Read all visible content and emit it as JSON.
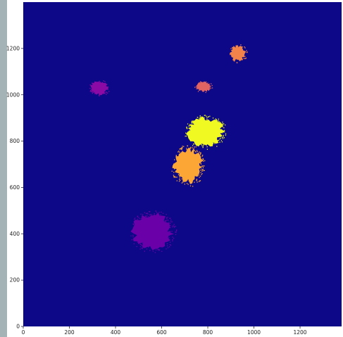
{
  "chart_data": {
    "type": "heatmap",
    "title": "",
    "xlabel": "",
    "ylabel": "",
    "xlim": [
      0,
      1380
    ],
    "ylim": [
      0,
      1400
    ],
    "x_ticks": [
      0,
      200,
      400,
      600,
      800,
      1000,
      1200
    ],
    "y_ticks": [
      0,
      200,
      400,
      600,
      800,
      1000,
      1200
    ],
    "x_tick_labels": [
      "0",
      "200",
      "400",
      "600",
      "800",
      "1000",
      "1200"
    ],
    "y_tick_labels": [
      "0",
      "200",
      "400",
      "600",
      "800",
      "1000",
      "1200"
    ],
    "grid": false,
    "legend": "none",
    "colormap": "plasma",
    "background_color": "#0d0887",
    "regions": [
      {
        "color": "#6a00a8",
        "cx": 560,
        "cy": 410,
        "rx": 90,
        "ry": 80
      },
      {
        "color": "#f0f921",
        "cx": 790,
        "cy": 840,
        "rx": 80,
        "ry": 65
      },
      {
        "color": "#fca636",
        "cx": 715,
        "cy": 695,
        "rx": 65,
        "ry": 80
      },
      {
        "color": "#8b0aa5",
        "cx": 330,
        "cy": 1030,
        "rx": 40,
        "ry": 30
      },
      {
        "color": "#e16462",
        "cx": 780,
        "cy": 1035,
        "rx": 35,
        "ry": 22
      },
      {
        "color": "#f2844b",
        "cx": 930,
        "cy": 1180,
        "rx": 35,
        "ry": 35
      }
    ]
  }
}
